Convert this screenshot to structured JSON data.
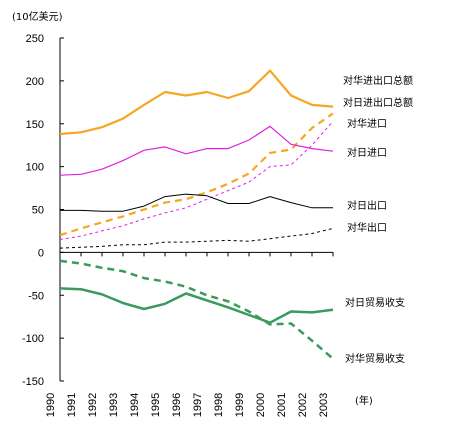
{
  "chart_data": {
    "type": "line",
    "unit_label": "(10亿美元)",
    "x_unit": "(年)",
    "x": [
      "1990",
      "1991",
      "1992",
      "1993",
      "1994",
      "1995",
      "1996",
      "1997",
      "1998",
      "1999",
      "2000",
      "2001",
      "2002",
      "2003"
    ],
    "ylim": [
      -150,
      250
    ],
    "yticks": [
      "250",
      "200",
      "150",
      "100",
      "50",
      "0",
      "-50",
      "-100",
      "-150"
    ],
    "grid": false,
    "legend": "direct labels at right",
    "series": [
      {
        "name": "对华进出口总额",
        "color": "#f5a623",
        "dash": false,
        "width": 2.2,
        "values": [
          138,
          140,
          146,
          156,
          172,
          187,
          183,
          187,
          180,
          188,
          212,
          183,
          172,
          170
        ]
      },
      {
        "name": "对日进出口总额",
        "color": "#f5a623",
        "dash": true,
        "width": 2.2,
        "values": [
          20,
          28,
          35,
          42,
          50,
          58,
          62,
          70,
          80,
          92,
          116,
          120,
          145,
          162
        ]
      },
      {
        "name": "对华进口",
        "color": "#e020e0",
        "dash": true,
        "width": 1,
        "values": [
          15,
          19,
          25,
          31,
          39,
          46,
          52,
          62,
          72,
          82,
          100,
          102,
          125,
          153
        ]
      },
      {
        "name": "对日进口",
        "color": "#e020e0",
        "dash": false,
        "width": 1.2,
        "values": [
          90,
          91,
          97,
          107,
          119,
          123,
          115,
          121,
          121,
          131,
          147,
          126,
          121,
          118
        ]
      },
      {
        "name": "对日出口",
        "color": "#000000",
        "dash": false,
        "width": 1,
        "values": [
          49,
          49,
          48,
          48,
          54,
          65,
          68,
          66,
          57,
          57,
          65,
          58,
          52,
          52
        ]
      },
      {
        "name": "对华出口",
        "color": "#000000",
        "dash": true,
        "width": 1,
        "values": [
          5,
          6,
          7,
          9,
          9,
          12,
          12,
          13,
          14,
          13,
          16,
          19,
          22,
          28
        ]
      },
      {
        "name": "对日贸易收支",
        "color": "#3a9a5c",
        "dash": false,
        "width": 2.5,
        "values": [
          -42,
          -43,
          -49,
          -59,
          -66,
          -60,
          -48,
          -56,
          -64,
          -73,
          -82,
          -69,
          -70,
          -67
        ]
      },
      {
        "name": "对华贸易收支",
        "color": "#3a9a5c",
        "dash": true,
        "width": 2.5,
        "values": [
          -10,
          -13,
          -18,
          -22,
          -30,
          -34,
          -40,
          -50,
          -57,
          -69,
          -84,
          -83,
          -103,
          -124
        ]
      }
    ],
    "labels": [
      {
        "series": 0,
        "text": "对华进出口总额"
      },
      {
        "series": 1,
        "text": "对日进出口总额"
      },
      {
        "series": 2,
        "text": "对华进口"
      },
      {
        "series": 3,
        "text": "对日进口"
      },
      {
        "series": 4,
        "text": "对日出口"
      },
      {
        "series": 5,
        "text": "对华出口"
      },
      {
        "series": 6,
        "text": "对日贸易收支"
      },
      {
        "series": 7,
        "text": "对华贸易收支"
      }
    ]
  }
}
